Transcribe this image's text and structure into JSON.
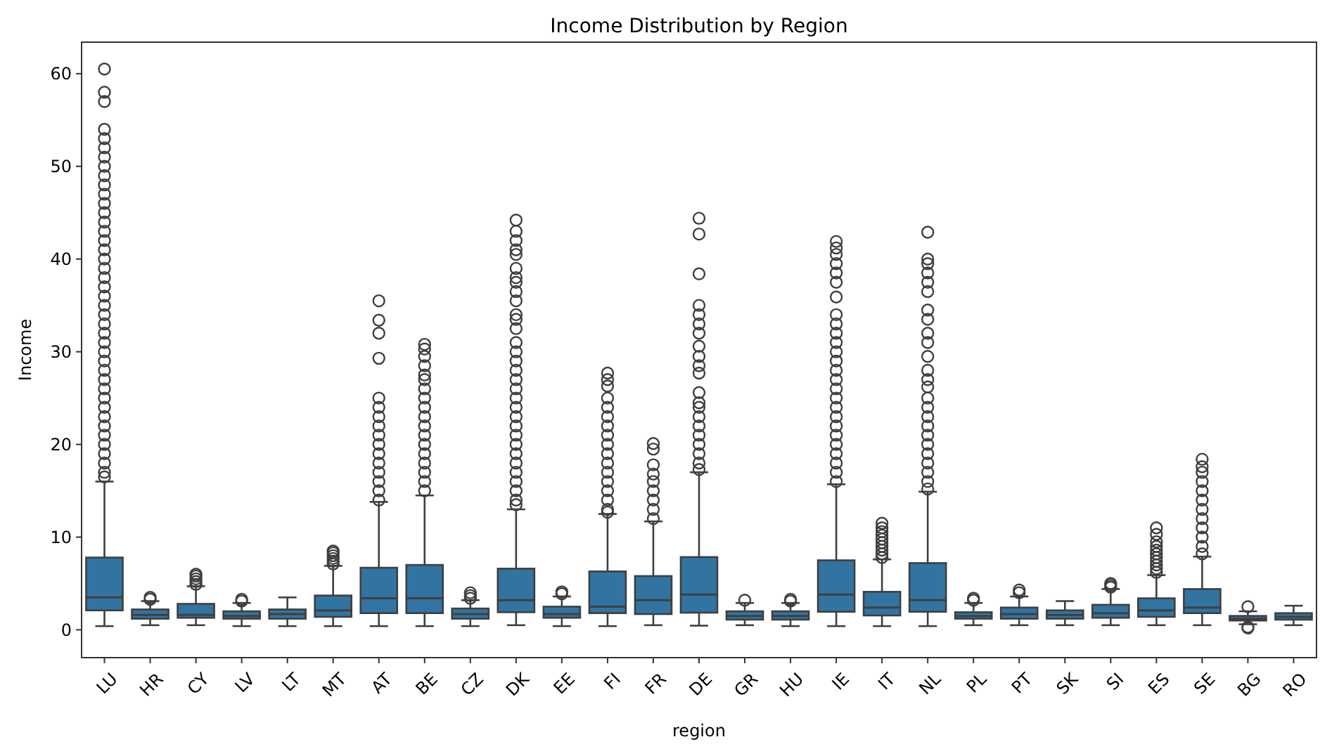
{
  "chart_data": {
    "type": "box",
    "title": "Income Distribution by Region",
    "xlabel": "region",
    "ylabel": "Income",
    "color": "#3274a1",
    "ylim": [
      -3,
      63.4
    ],
    "yticks": [
      0,
      10,
      20,
      30,
      40,
      50,
      60
    ],
    "grid": false,
    "categories": [
      "LU",
      "HR",
      "CY",
      "LV",
      "LT",
      "MT",
      "AT",
      "BE",
      "CZ",
      "DK",
      "EE",
      "FI",
      "FR",
      "DE",
      "GR",
      "HU",
      "IE",
      "IT",
      "NL",
      "PL",
      "PT",
      "SK",
      "SI",
      "ES",
      "SE",
      "BG",
      "RO"
    ],
    "boxes": [
      {
        "low": 0.4,
        "q1": 2.1,
        "median": 3.5,
        "q3": 7.8,
        "high": 16,
        "outliers": [
          16.5,
          17,
          18,
          19,
          20,
          21,
          22,
          23,
          24,
          25,
          26,
          27,
          28,
          29,
          30,
          31,
          32,
          33,
          34,
          35,
          36,
          37,
          38,
          39,
          40,
          41,
          42,
          43,
          44,
          45,
          46,
          47,
          48,
          49,
          50,
          51,
          52,
          53,
          54,
          57,
          58,
          60.5
        ]
      },
      {
        "low": 0.5,
        "q1": 1.2,
        "median": 1.6,
        "q3": 2.2,
        "high": 3.1,
        "outliers": [
          3.3,
          3.5
        ]
      },
      {
        "low": 0.5,
        "q1": 1.3,
        "median": 1.6,
        "q3": 2.8,
        "high": 4.7,
        "outliers": [
          4.9,
          5.2,
          5.5,
          5.8,
          6
        ]
      },
      {
        "low": 0.4,
        "q1": 1.2,
        "median": 1.5,
        "q3": 2,
        "high": 2.9,
        "outliers": [
          3.1,
          3.3
        ]
      },
      {
        "low": 0.4,
        "q1": 1.2,
        "median": 1.7,
        "q3": 2.2,
        "high": 3.5
      },
      {
        "low": 0.4,
        "q1": 1.4,
        "median": 2.1,
        "q3": 3.7,
        "high": 6.9,
        "outliers": [
          7.1,
          7.4,
          7.7,
          8,
          8.3,
          8.5
        ]
      },
      {
        "low": 0.4,
        "q1": 1.8,
        "median": 3.4,
        "q3": 6.7,
        "high": 13.8,
        "outliers": [
          14,
          15,
          16,
          17,
          18,
          19,
          20,
          21,
          22,
          23,
          24,
          25,
          29.3,
          32,
          33.4,
          35.5
        ]
      },
      {
        "low": 0.4,
        "q1": 1.8,
        "median": 3.4,
        "q3": 7,
        "high": 14.5,
        "outliers": [
          15,
          16,
          17,
          18,
          19,
          20,
          21,
          22,
          23,
          24,
          25,
          26,
          27,
          27.5,
          28.5,
          29.5,
          30.3,
          30.8
        ]
      },
      {
        "low": 0.4,
        "q1": 1.2,
        "median": 1.7,
        "q3": 2.3,
        "high": 3.2,
        "outliers": [
          3.4,
          3.7,
          4
        ]
      },
      {
        "low": 0.5,
        "q1": 1.9,
        "median": 3.2,
        "q3": 6.6,
        "high": 13,
        "outliers": [
          13.5,
          14,
          15,
          16,
          17,
          18,
          19,
          20,
          21,
          22,
          23,
          24,
          25,
          26,
          27,
          28,
          29,
          30,
          31,
          32.5,
          33.5,
          34,
          35.5,
          36.5,
          37.5,
          38,
          39,
          40.5,
          41,
          42,
          43,
          44.2
        ]
      },
      {
        "low": 0.4,
        "q1": 1.3,
        "median": 1.7,
        "q3": 2.5,
        "high": 3.6,
        "outliers": [
          3.9,
          4.1
        ]
      },
      {
        "low": 0.4,
        "q1": 1.8,
        "median": 2.5,
        "q3": 6.3,
        "high": 12.5,
        "outliers": [
          12.7,
          13,
          14,
          15,
          16,
          17,
          18,
          19,
          20,
          21,
          22,
          23,
          24,
          25,
          26.3,
          27,
          27.7
        ]
      },
      {
        "low": 0.5,
        "q1": 1.7,
        "median": 3.2,
        "q3": 5.8,
        "high": 11.7,
        "outliers": [
          12,
          13,
          14,
          15,
          16,
          16.8,
          17.8,
          19.5,
          20.1
        ]
      },
      {
        "low": 0.45,
        "q1": 1.85,
        "median": 3.8,
        "q3": 7.85,
        "high": 17,
        "outliers": [
          17.3,
          18,
          19,
          20,
          21,
          22,
          23,
          24,
          24.5,
          25.6,
          27.7,
          28.5,
          29.5,
          30.6,
          32,
          33,
          34,
          35,
          38.4,
          42.7,
          44.4
        ]
      },
      {
        "low": 0.5,
        "q1": 1.1,
        "median": 1.5,
        "q3": 2,
        "high": 2.9,
        "outliers": [
          3.2
        ]
      },
      {
        "low": 0.4,
        "q1": 1.1,
        "median": 1.5,
        "q3": 2,
        "high": 2.9,
        "outliers": [
          3.1,
          3.3
        ]
      },
      {
        "low": 0.4,
        "q1": 1.95,
        "median": 3.8,
        "q3": 7.5,
        "high": 15.7,
        "outliers": [
          16,
          17,
          18,
          19,
          20,
          21,
          22,
          23,
          24,
          25,
          26,
          27,
          28,
          29,
          30,
          31,
          32,
          33,
          34,
          35.9,
          37.5,
          38.5,
          39.5,
          40.5,
          41.2,
          41.9
        ]
      },
      {
        "low": 0.4,
        "q1": 1.55,
        "median": 2.4,
        "q3": 4.1,
        "high": 7.6,
        "outliers": [
          7.8,
          8.2,
          8.6,
          9,
          9.4,
          9.8,
          10.2,
          10.6,
          11,
          11.5
        ]
      },
      {
        "low": 0.4,
        "q1": 1.95,
        "median": 3.2,
        "q3": 7.2,
        "high": 14.9,
        "outliers": [
          15.2,
          16,
          17,
          18,
          19,
          20,
          21,
          22,
          23,
          24,
          25,
          26.2,
          27,
          28,
          29.5,
          31,
          32,
          33.5,
          34.5,
          36.5,
          37.5,
          38.5,
          39.5,
          40,
          42.9
        ]
      },
      {
        "low": 0.5,
        "q1": 1.2,
        "median": 1.5,
        "q3": 1.9,
        "high": 2.9,
        "outliers": [
          3.2,
          3.4
        ]
      },
      {
        "low": 0.5,
        "q1": 1.2,
        "median": 1.7,
        "q3": 2.4,
        "high": 3.6,
        "outliers": [
          4,
          4.3
        ]
      },
      {
        "low": 0.5,
        "q1": 1.2,
        "median": 1.6,
        "q3": 2.1,
        "high": 3.1
      },
      {
        "low": 0.5,
        "q1": 1.3,
        "median": 1.8,
        "q3": 2.7,
        "high": 4.4,
        "outliers": [
          4.6,
          4.8,
          5
        ]
      },
      {
        "low": 0.5,
        "q1": 1.4,
        "median": 2.1,
        "q3": 3.4,
        "high": 5.9,
        "outliers": [
          6.2,
          6.6,
          7,
          7.4,
          7.8,
          8.2,
          8.6,
          9,
          9.5,
          10.3,
          11
        ]
      },
      {
        "low": 0.5,
        "q1": 1.8,
        "median": 2.4,
        "q3": 4.4,
        "high": 7.9,
        "outliers": [
          8.2,
          9,
          10,
          11,
          12,
          13,
          14,
          15,
          16,
          17,
          17.6,
          18.4
        ]
      },
      {
        "low": 0.6,
        "q1": 1,
        "median": 1.2,
        "q3": 1.5,
        "high": 2,
        "outliers": [
          0.2,
          0.3,
          2.5
        ]
      },
      {
        "low": 0.5,
        "q1": 1.1,
        "median": 1.4,
        "q3": 1.8,
        "high": 2.6
      }
    ]
  }
}
